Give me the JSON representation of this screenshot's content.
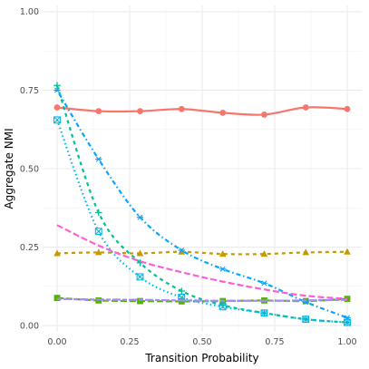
{
  "chart_data": {
    "type": "line",
    "title": "",
    "xlabel": "Transition Probability",
    "ylabel": "Aggregate NMI",
    "xlim": [
      -0.05,
      1.05
    ],
    "ylim": [
      -0.02,
      1.02
    ],
    "x_ticks": [
      0,
      0.25,
      0.5,
      0.75,
      1
    ],
    "x_tick_labels": [
      "0.00",
      "0.25",
      "0.50",
      "0.75",
      "1.00"
    ],
    "y_ticks": [
      0,
      0.25,
      0.5,
      0.75,
      1
    ],
    "y_tick_labels": [
      "0.00",
      "0.25",
      "0.50",
      "0.75",
      "1.00"
    ],
    "grid": true,
    "legend": "none",
    "series": [
      {
        "color": "#F8766D",
        "dash": "solid",
        "marker": "circle",
        "x": [
          0,
          0.143,
          0.286,
          0.429,
          0.571,
          0.714,
          0.857,
          1
        ],
        "y": [
          0.695,
          0.683,
          0.683,
          0.69,
          0.678,
          0.672,
          0.695,
          0.69
        ]
      },
      {
        "color": "#C49A00",
        "dash": "dashed",
        "marker": "triangle",
        "x": [
          0,
          0.143,
          0.286,
          0.429,
          0.571,
          0.714,
          0.857,
          1
        ],
        "y": [
          0.23,
          0.233,
          0.23,
          0.235,
          0.228,
          0.228,
          0.233,
          0.235
        ]
      },
      {
        "color": "#53B400",
        "dash": "longdash",
        "marker": "square",
        "x": [
          0,
          0.143,
          0.286,
          0.429,
          0.571,
          0.714,
          0.857,
          1
        ],
        "y": [
          0.088,
          0.08,
          0.078,
          0.077,
          0.078,
          0.08,
          0.078,
          0.085
        ]
      },
      {
        "color": "#00C094",
        "dash": "dashed",
        "marker": "cross",
        "x": [
          0,
          0.143,
          0.286,
          0.429,
          0.571,
          0.714,
          0.857,
          1
        ],
        "y": [
          0.765,
          0.36,
          0.2,
          0.11,
          0.065,
          0.04,
          0.02,
          0.01
        ]
      },
      {
        "color": "#00B6EB",
        "dash": "dotted",
        "marker": "square-cross",
        "x": [
          0,
          0.143,
          0.286,
          0.429,
          0.571,
          0.714,
          0.857,
          1
        ],
        "y": [
          0.655,
          0.3,
          0.155,
          0.09,
          0.06,
          0.04,
          0.02,
          0.01
        ]
      },
      {
        "color": "#06A4FF",
        "dash": "dotdash",
        "marker": "asterisk",
        "x": [
          0,
          0.143,
          0.286,
          0.429,
          0.571,
          0.714,
          0.857,
          1
        ],
        "y": [
          0.75,
          0.53,
          0.345,
          0.24,
          0.18,
          0.135,
          0.075,
          0.025
        ]
      },
      {
        "color": "#A58AFF",
        "dash": "twodash",
        "marker": "none",
        "x": [
          0,
          0.143,
          0.286,
          0.429,
          0.571,
          0.714,
          0.857,
          1
        ],
        "y": [
          0.085,
          0.083,
          0.082,
          0.08,
          0.079,
          0.079,
          0.08,
          0.082
        ]
      },
      {
        "color": "#FB61D7",
        "dash": "longdash",
        "marker": "none",
        "x": [
          0,
          0.143,
          0.286,
          0.429,
          0.571,
          0.714,
          0.857,
          1
        ],
        "y": [
          0.32,
          0.255,
          0.205,
          0.17,
          0.14,
          0.115,
          0.095,
          0.085
        ]
      }
    ]
  }
}
